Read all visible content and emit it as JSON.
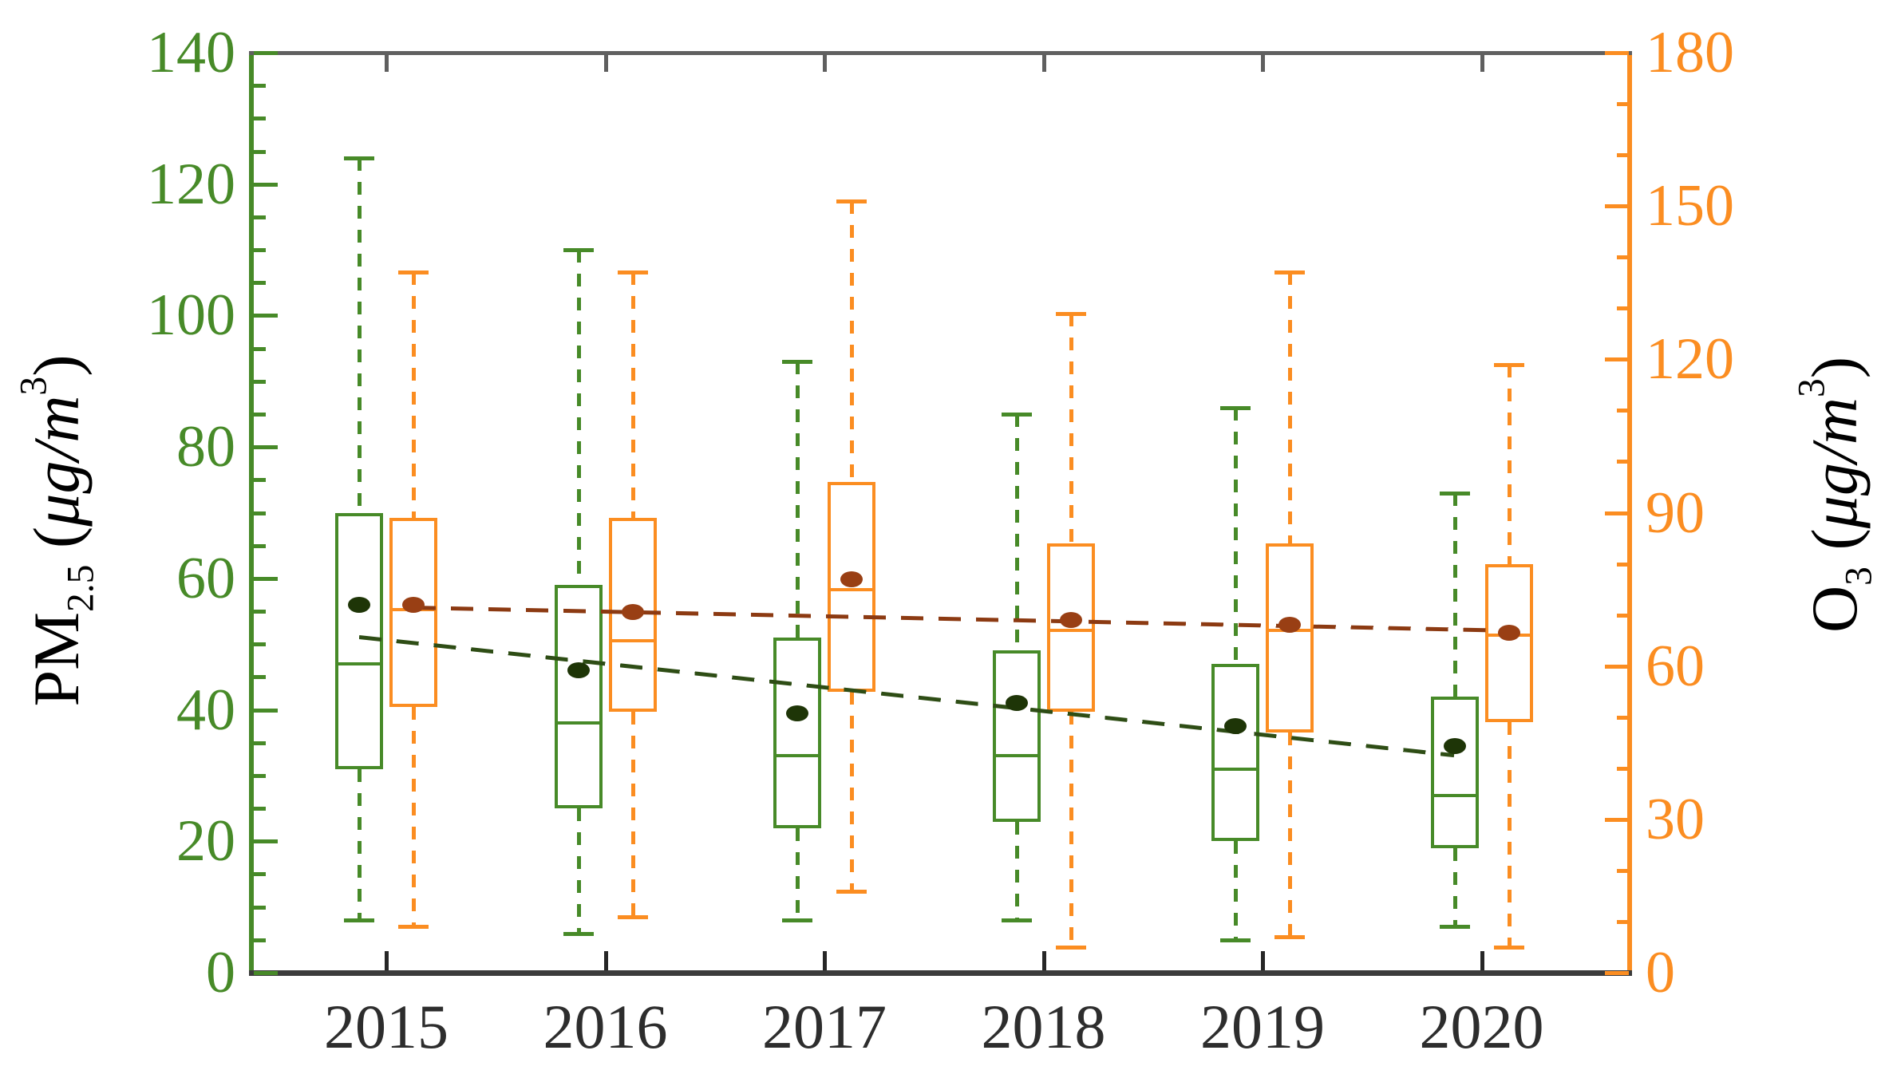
{
  "chart_data": {
    "type": "boxplot",
    "title": "",
    "categories": [
      "2015",
      "2016",
      "2017",
      "2018",
      "2019",
      "2020"
    ],
    "x_axis": {
      "tick_color": "#262626",
      "top_tick_color": "#5f5f5f",
      "label_color": "#2d2d2d",
      "bottom_spine_color": "#3c3c3c",
      "top_spine_color": "#606060"
    },
    "y_left": {
      "label_base": "PM",
      "label_sub": "2.5",
      "unit_open": " (",
      "unit_mu": "μg/m",
      "unit_sup": "3",
      "unit_close": ")",
      "ticks": [
        0,
        20,
        40,
        60,
        80,
        100,
        120,
        140
      ],
      "minor_step": 5,
      "range_min": 0,
      "range_max": 140,
      "color": "#478a28"
    },
    "y_right": {
      "label_base": "O",
      "label_sub": "3",
      "unit_open": " (",
      "unit_mu": "μg/m",
      "unit_sup": "3",
      "unit_close": ")",
      "ticks": [
        0,
        30,
        60,
        90,
        120,
        150,
        180
      ],
      "minor_step": 10,
      "range_min": 0,
      "range_max": 180,
      "color": "#fb8d21"
    },
    "series": [
      {
        "name": "PM2.5",
        "axis": "left",
        "color": "#478a28",
        "mean_color": "#1e3507",
        "trend_color": "#2e4d15",
        "boxes": [
          {
            "year": "2015",
            "low": 8,
            "q1": 31,
            "median": 47,
            "q3": 70,
            "high": 124,
            "mean": 56
          },
          {
            "year": "2016",
            "low": 6,
            "q1": 25,
            "median": 38,
            "q3": 59,
            "high": 110,
            "mean": 46
          },
          {
            "year": "2017",
            "low": 8,
            "q1": 22,
            "median": 33,
            "q3": 51,
            "high": 93,
            "mean": 39.5
          },
          {
            "year": "2018",
            "low": 8,
            "q1": 23,
            "median": 33,
            "q3": 49,
            "high": 85,
            "mean": 41
          },
          {
            "year": "2019",
            "low": 5,
            "q1": 20,
            "median": 31,
            "q3": 47,
            "high": 86,
            "mean": 37.5
          },
          {
            "year": "2020",
            "low": 7,
            "q1": 19,
            "median": 27,
            "q3": 42,
            "high": 73,
            "mean": 34.5
          }
        ],
        "trend": {
          "start_value": 51,
          "end_value": 33
        }
      },
      {
        "name": "O3",
        "axis": "right",
        "color": "#fb8d21",
        "mean_color": "#993f14",
        "trend_color": "#8c3a12",
        "boxes": [
          {
            "year": "2015",
            "low": 9,
            "q1": 52,
            "median": 71,
            "q3": 89,
            "high": 137,
            "mean": 72
          },
          {
            "year": "2016",
            "low": 11,
            "q1": 51,
            "median": 65,
            "q3": 89,
            "high": 137,
            "mean": 70.5
          },
          {
            "year": "2017",
            "low": 16,
            "q1": 55,
            "median": 75,
            "q3": 96,
            "high": 151,
            "mean": 77
          },
          {
            "year": "2018",
            "low": 5,
            "q1": 51,
            "median": 67,
            "q3": 84,
            "high": 129,
            "mean": 69
          },
          {
            "year": "2019",
            "low": 7,
            "q1": 47,
            "median": 67,
            "q3": 84,
            "high": 137,
            "mean": 68
          },
          {
            "year": "2020",
            "low": 5,
            "q1": 49,
            "median": 66,
            "q3": 80,
            "high": 119,
            "mean": 66.5
          }
        ],
        "trend": {
          "start_value": 71.5,
          "end_value": 67
        }
      }
    ],
    "legend": "none",
    "grid": "off"
  }
}
